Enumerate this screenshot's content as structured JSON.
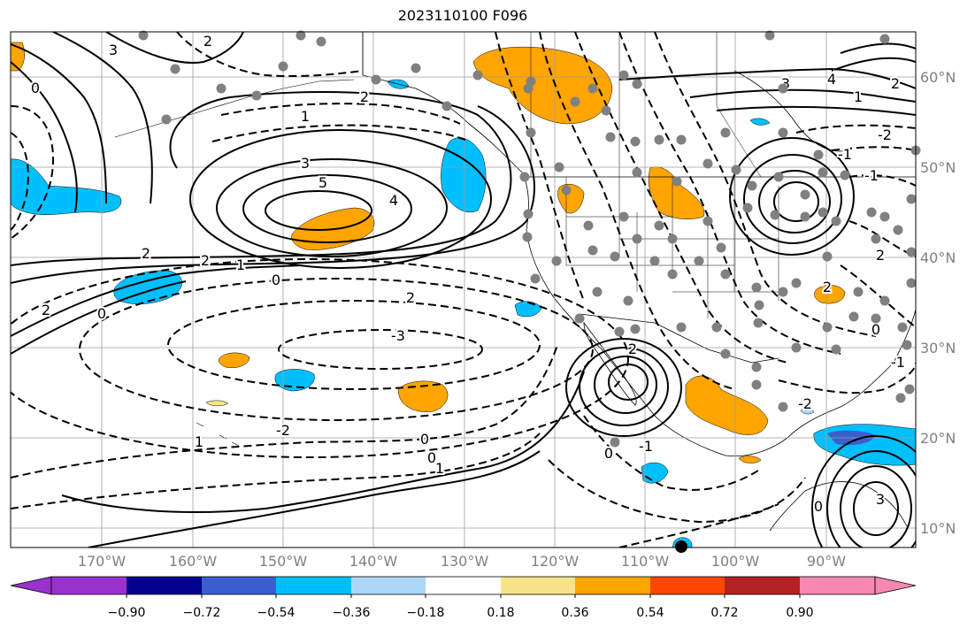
{
  "title": "2023110100 F096",
  "lat_labels": [
    "60°N",
    "50°N",
    "40°N",
    "30°N",
    "20°N",
    "10°N"
  ],
  "lon_labels": [
    "170°W",
    "160°W",
    "150°W",
    "140°W",
    "130°W",
    "120°W",
    "110°W",
    "100°W",
    "90°W"
  ],
  "contour_labels": [
    "3",
    "2",
    "0",
    "2",
    "1",
    "3",
    "5",
    "4",
    "2",
    "2",
    "1",
    "0",
    "2",
    "-3",
    "2",
    "1",
    "0",
    "-2",
    "0",
    "1",
    "-1",
    "2",
    "0",
    "-2",
    "-1",
    "3",
    "4",
    "2",
    "1",
    "2",
    "0",
    "-1",
    "2",
    "0",
    "3",
    "0",
    "-2",
    "-1"
  ],
  "colorbar": {
    "colors": [
      "#9932cc",
      "#00008b",
      "#3a5fcd",
      "#00bfff",
      "#add8f5",
      "#ffffff",
      "#f7e38a",
      "#ffa500",
      "#ff4500",
      "#b22222",
      "#f988b0"
    ],
    "tick_labels": [
      "−0.90",
      "−0.72",
      "−0.54",
      "−0.36",
      "−0.18",
      "0.18",
      "0.36",
      "0.54",
      "0.72",
      "0.90"
    ]
  }
}
